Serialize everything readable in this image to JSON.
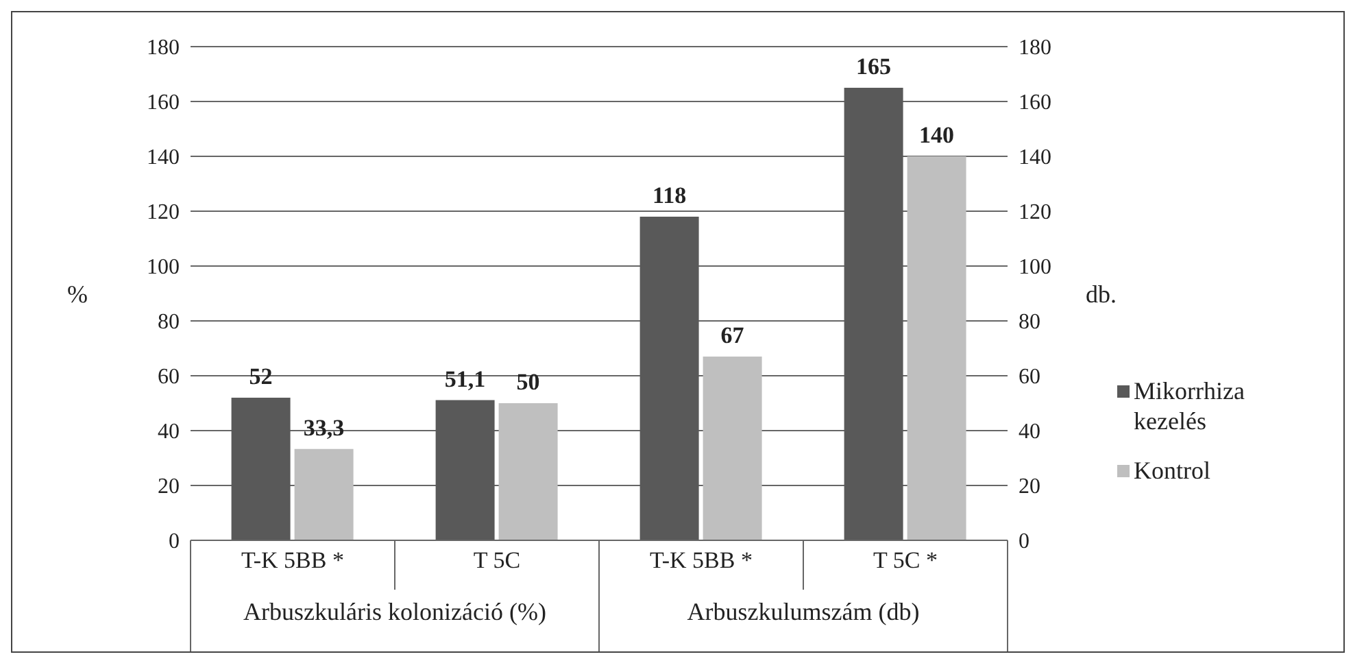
{
  "chart_data": {
    "type": "bar",
    "categories": [
      "T-K 5BB *",
      "T 5C",
      "T-K 5BB *",
      "T 5C *"
    ],
    "series": [
      {
        "name": "Mikorrhiza kezelés",
        "color": "#595959",
        "values": [
          52,
          51.1,
          118,
          165
        ],
        "value_labels": [
          "52",
          "51,1",
          "118",
          "165"
        ]
      },
      {
        "name": "Kontrol",
        "color": "#bfbfbf",
        "values": [
          33.3,
          50,
          67,
          140
        ],
        "value_labels": [
          "33,3",
          "50",
          "67",
          "140"
        ]
      }
    ],
    "ylabel": "%",
    "y2label": "db.",
    "ylim": [
      0,
      180
    ],
    "yticks": [
      0,
      20,
      40,
      60,
      80,
      100,
      120,
      140,
      160,
      180
    ],
    "y2lim": [
      0,
      180
    ],
    "y2ticks": [
      0,
      20,
      40,
      60,
      80,
      100,
      120,
      140,
      160,
      180
    ],
    "annotations": [
      "Arbuszkuláris kolonizáció (%)",
      "Arbuszkulumszám (db)"
    ],
    "grid": "y",
    "legend": "right"
  }
}
